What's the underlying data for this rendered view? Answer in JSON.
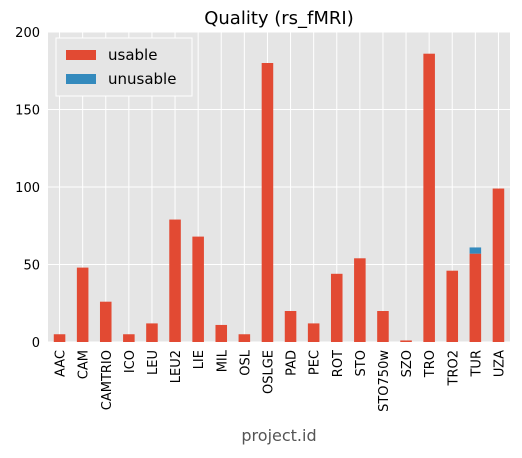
{
  "chart_data": {
    "type": "bar",
    "stacked": true,
    "title": "Quality (rs_fMRI)",
    "xlabel": "project.id",
    "ylabel": "",
    "ylim": [
      0,
      200
    ],
    "yticks": [
      0,
      50,
      100,
      150,
      200
    ],
    "grid": true,
    "legend_position": "top-left",
    "categories": [
      "AAC",
      "CAM",
      "CAMTRIO",
      "ICO",
      "LEU",
      "LEU2",
      "LIE",
      "MIL",
      "OSL",
      "OSLGE",
      "PAD",
      "PEC",
      "ROT",
      "STO",
      "STO750w",
      "SZO",
      "TRO",
      "TRO2",
      "TUR",
      "UZA"
    ],
    "series": [
      {
        "name": "usable",
        "color": "#e24a33",
        "values": [
          5,
          48,
          26,
          5,
          12,
          79,
          68,
          11,
          5,
          180,
          20,
          12,
          44,
          54,
          20,
          1,
          186,
          46,
          57,
          99
        ]
      },
      {
        "name": "unusable",
        "color": "#348abd",
        "values": [
          0,
          0,
          0,
          0,
          0,
          0,
          0,
          0,
          0,
          0,
          0,
          0,
          0,
          0,
          0,
          0,
          0,
          0,
          4,
          0
        ]
      }
    ],
    "plot_background": "#e5e5e5",
    "grid_color": "#ffffff"
  }
}
